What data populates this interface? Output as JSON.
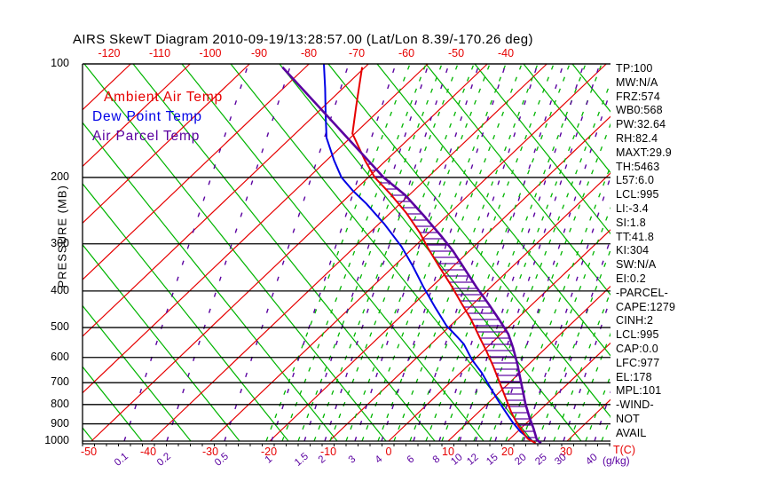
{
  "title": "AIRS SkewT Diagram 2010-09-19/13:28:57.00 (Lat/Lon 8.39/-170.26 deg)",
  "colors": {
    "temp_red": "#e60000",
    "grid_green": "#00b400",
    "dew_blue": "#0000e6",
    "parcel_purple": "#5a00a0",
    "axis_black": "#000000"
  },
  "legend": [
    {
      "label": "Ambient Air Temp",
      "color": "temp_red"
    },
    {
      "label": "Dew Point Temp",
      "color": "dew_blue"
    },
    {
      "label": "Air Parcel Temp",
      "color": "parcel_purple"
    }
  ],
  "axes": {
    "pressure_label": "PRESSURE (MB)",
    "pressure_ticks": [
      "100",
      "200",
      "300",
      "400",
      "500",
      "600",
      "700",
      "800",
      "900",
      "1000"
    ],
    "top_temp_ticks": [
      "-120",
      "-110",
      "-100",
      "-90",
      "-80",
      "-70",
      "-60",
      "-50",
      "-40"
    ],
    "bottom_temp_ticks": [
      "-50",
      "-40",
      "-30",
      "-20",
      "-10",
      "0",
      "10",
      "20",
      "30"
    ],
    "bottom_temp_unit": "T(C)",
    "mixing_ratio_ticks": [
      "0.1",
      "0.2",
      "0.5",
      "1",
      "1.5",
      "2",
      "3",
      "4",
      "6",
      "8",
      "10",
      "12",
      "15",
      "20",
      "25",
      "30",
      "40"
    ],
    "mixing_ratio_unit": "(g/kg)"
  },
  "stats_panel": {
    "lines": [
      "TP:100",
      "MW:N/A",
      "FRZ:574",
      "WB0:568",
      "PW:32.64",
      "RH:82.4",
      "MAXT:29.9",
      "TH:5463",
      "L57:6.0",
      "LCL:995",
      "LI:-3.4",
      "SI:1.8",
      "TT:41.8",
      "KI:304",
      "SW:N/A",
      "EI:0.2",
      "-PARCEL-",
      "CAPE:1279",
      "CINH:2",
      "LCL:995",
      "CAP:0.0",
      "LFC:977",
      "EL:178",
      "MPL:101",
      "-WIND-",
      "NOT",
      "AVAIL"
    ]
  },
  "chart_data": {
    "type": "line",
    "diagram": "skew-T log-P sounding",
    "title": "AIRS SkewT Diagram 2010-09-19/13:28:57.00 (Lat/Lon 8.39/-170.26 deg)",
    "xlabel": "T(C)",
    "ylabel": "PRESSURE (MB)",
    "pressure_range_mb": [
      100,
      1013
    ],
    "bottom_temp_ticks_c": [
      -50,
      -40,
      -30,
      -20,
      -10,
      0,
      10,
      20,
      30
    ],
    "top_temp_ticks_c": [
      -120,
      -110,
      -100,
      -90,
      -80,
      -70,
      -60,
      -50,
      -40
    ],
    "mixing_ratio_lines_g_per_kg": [
      0.1,
      0.2,
      0.5,
      1,
      1.5,
      2,
      3,
      4,
      6,
      8,
      10,
      12,
      15,
      20,
      25,
      30,
      40
    ],
    "grid": "skewed isotherms (red), dry adiabats (green), mixing-ratio lines (dashed), log-P pressure lines (black)",
    "legend_position": "upper-left inside plot",
    "series": [
      {
        "name": "Ambient Air Temp",
        "units": [
          "pressure_mb",
          "temp_c"
        ],
        "points": [
          [
            102,
            -70.5
          ],
          [
            130,
            -64.5
          ],
          [
            153,
            -60.4
          ],
          [
            180,
            -53.6
          ],
          [
            200,
            -48.9
          ],
          [
            221,
            -43.4
          ],
          [
            248,
            -37.4
          ],
          [
            280,
            -31.6
          ],
          [
            309,
            -27.3
          ],
          [
            344,
            -22.4
          ],
          [
            383,
            -17.4
          ],
          [
            433,
            -11.9
          ],
          [
            475,
            -7.7
          ],
          [
            530,
            -3.1
          ],
          [
            575,
            0.4
          ],
          [
            632,
            4.3
          ],
          [
            699,
            8.3
          ],
          [
            773,
            12.3
          ],
          [
            836,
            15.4
          ],
          [
            909,
            19.0
          ],
          [
            986,
            23.0
          ],
          [
            1013,
            25.1
          ]
        ]
      },
      {
        "name": "Dew Point Temp",
        "units": [
          "pressure_mb",
          "temp_c"
        ],
        "points": [
          [
            100,
            -77.5
          ],
          [
            116,
            -73.0
          ],
          [
            137,
            -68.1
          ],
          [
            157,
            -64.0
          ],
          [
            180,
            -58.8
          ],
          [
            200,
            -54.5
          ],
          [
            217,
            -50.2
          ],
          [
            235,
            -45.6
          ],
          [
            266,
            -39.0
          ],
          [
            305,
            -32.2
          ],
          [
            344,
            -26.8
          ],
          [
            390,
            -21.4
          ],
          [
            443,
            -15.7
          ],
          [
            494,
            -10.7
          ],
          [
            530,
            -6.8
          ],
          [
            553,
            -4.5
          ],
          [
            608,
            -0.4
          ],
          [
            659,
            3.6
          ],
          [
            716,
            7.3
          ],
          [
            785,
            11.5
          ],
          [
            840,
            14.7
          ],
          [
            891,
            17.5
          ],
          [
            944,
            20.5
          ],
          [
            988,
            23.4
          ],
          [
            1000,
            24.2
          ]
        ]
      },
      {
        "name": "Air Parcel Temp",
        "units": [
          "pressure_mb",
          "temp_c"
        ],
        "points": [
          [
            102,
            -83.9
          ],
          [
            178,
            -53.7
          ],
          [
            200,
            -47.4
          ],
          [
            223,
            -40.6
          ],
          [
            252,
            -34.0
          ],
          [
            287,
            -27.2
          ],
          [
            313,
            -22.8
          ],
          [
            349,
            -17.7
          ],
          [
            390,
            -12.5
          ],
          [
            433,
            -7.4
          ],
          [
            475,
            -3.0
          ],
          [
            520,
            1.2
          ],
          [
            565,
            4.4
          ],
          [
            624,
            8.0
          ],
          [
            677,
            10.8
          ],
          [
            734,
            13.6
          ],
          [
            796,
            16.4
          ],
          [
            863,
            19.4
          ],
          [
            925,
            22.1
          ],
          [
            992,
            24.7
          ],
          [
            1013,
            26.0
          ]
        ]
      }
    ],
    "cape_hatch_region": {
      "between": [
        "Ambient Air Temp",
        "Air Parcel Temp"
      ],
      "from_pressure_mb": 178,
      "to_pressure_mb": 1013,
      "style": "horizontal purple hatching"
    }
  }
}
